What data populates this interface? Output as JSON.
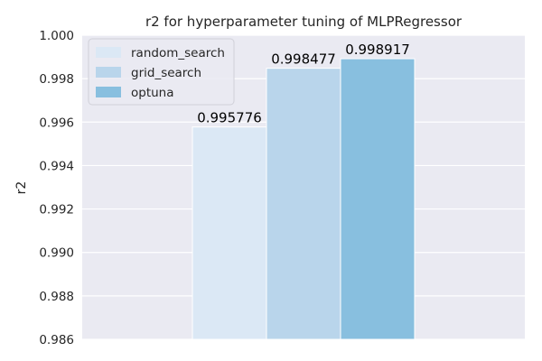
{
  "chart_data": {
    "type": "bar",
    "title": "r2 for hyperparameter tuning of MLPRegressor",
    "xlabel": "",
    "ylabel": "r2",
    "ylim": [
      0.986,
      1.0
    ],
    "yticks": [
      "0.986",
      "0.988",
      "0.990",
      "0.992",
      "0.994",
      "0.996",
      "0.998",
      "1.000"
    ],
    "grid": true,
    "legend_position": "top-left",
    "series": [
      {
        "name": "random_search",
        "value": 0.995776,
        "label": "0.995776",
        "color": "#dbe8f5"
      },
      {
        "name": "grid_search",
        "value": 0.998477,
        "label": "0.998477",
        "color": "#b9d5eb"
      },
      {
        "name": "optuna",
        "value": 0.998917,
        "label": "0.998917",
        "color": "#88bfdf"
      }
    ]
  }
}
